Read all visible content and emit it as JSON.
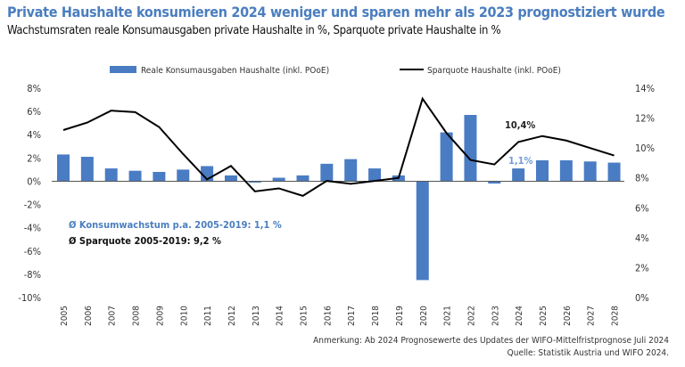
{
  "title": "Private Haushalte konsumieren 2024 weniger und sparen mehr als 2023 prognostiziert wurde",
  "subtitle": "Wachstumsraten reale Konsumausgaben private Haushalte in %, Sparquote private Haushalte in %",
  "notes": {
    "remark": "Anmerkung: Ab 2024 Prognosewerte des Updates der WIFO-Mittelfristprognose Juli 2024",
    "source": "Quelle: Statistik Austria und WIFO 2024."
  },
  "colors": {
    "bar": "#4a7cc4",
    "line": "#000000",
    "title": "#4a7ebf"
  },
  "chart_data": {
    "type": "bar+line",
    "categories": [
      "2005",
      "2006",
      "2007",
      "2008",
      "2009",
      "2010",
      "2011",
      "2012",
      "2013",
      "2014",
      "2015",
      "2016",
      "2017",
      "2018",
      "2019",
      "2020",
      "2021",
      "2022",
      "2023",
      "2024",
      "2025",
      "2026",
      "2027",
      "2028"
    ],
    "series": [
      {
        "name": "Reale Konsumausgaben Haushalte (inkl. POoE)",
        "type": "bar",
        "axis": "left",
        "values": [
          2.3,
          2.1,
          1.1,
          0.9,
          0.8,
          1.0,
          1.3,
          0.5,
          -0.1,
          0.3,
          0.5,
          1.5,
          1.9,
          1.1,
          0.5,
          -8.5,
          4.2,
          5.7,
          -0.2,
          1.1,
          1.8,
          1.8,
          1.7,
          1.6
        ]
      },
      {
        "name": "Sparquote Haushalte (inkl. POoE)",
        "type": "line",
        "axis": "right",
        "values": [
          11.2,
          11.7,
          12.5,
          12.4,
          11.4,
          9.6,
          7.9,
          8.8,
          7.1,
          7.3,
          6.8,
          7.8,
          7.6,
          7.8,
          8.0,
          13.3,
          11.0,
          9.2,
          8.9,
          10.4,
          10.8,
          10.5,
          10.0,
          9.5
        ]
      }
    ],
    "left_axis": {
      "range": [
        -10,
        8
      ],
      "ticks": [
        "8%",
        "6%",
        "4%",
        "2%",
        "0%",
        "-2%",
        "-4%",
        "-6%",
        "-8%",
        "-10%"
      ]
    },
    "right_axis": {
      "range": [
        0,
        14
      ],
      "ticks": [
        "14%",
        "12%",
        "10%",
        "8%",
        "6%",
        "4%",
        "2%",
        "0%"
      ]
    },
    "annotations": {
      "line_2024": "10,4%",
      "bar_2024": "1,1%",
      "avg_consumption": "Ø Konsumwachstum p.a. 2005-2019: 1,1 %",
      "avg_saving": "Ø Sparquote 2005-2019: 9,2 %"
    },
    "legend": "top",
    "grid": false
  }
}
